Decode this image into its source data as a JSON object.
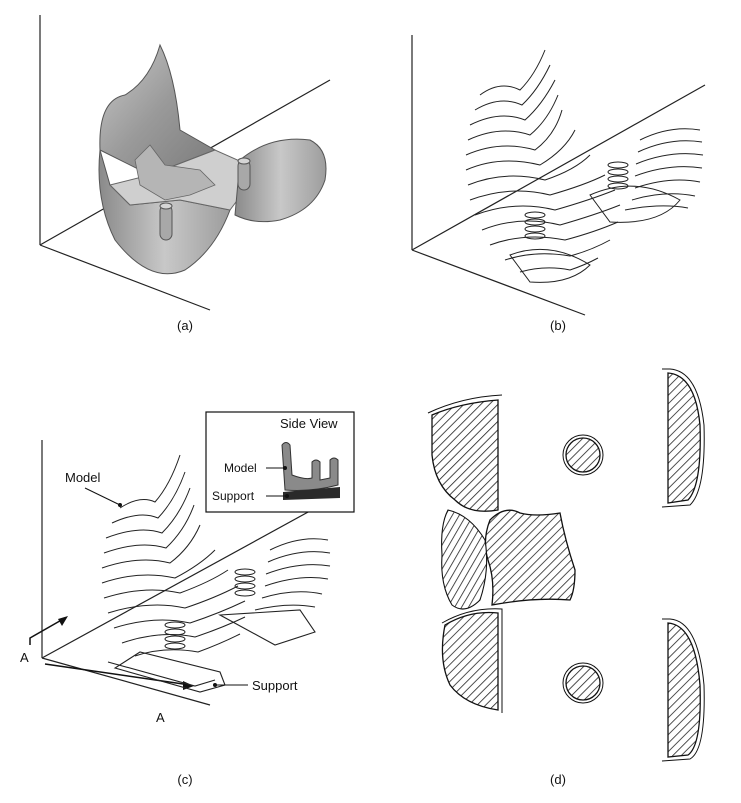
{
  "figure": {
    "captions": {
      "a": "(a)",
      "b": "(b)",
      "c": "(c)",
      "d": "(d)"
    },
    "panel_c": {
      "model_label": "Model",
      "support_label": "Support",
      "axis_label_left": "A",
      "axis_label_bottom": "A",
      "inset": {
        "title": "Side View",
        "model_label": "Model",
        "support_label": "Support"
      }
    }
  }
}
